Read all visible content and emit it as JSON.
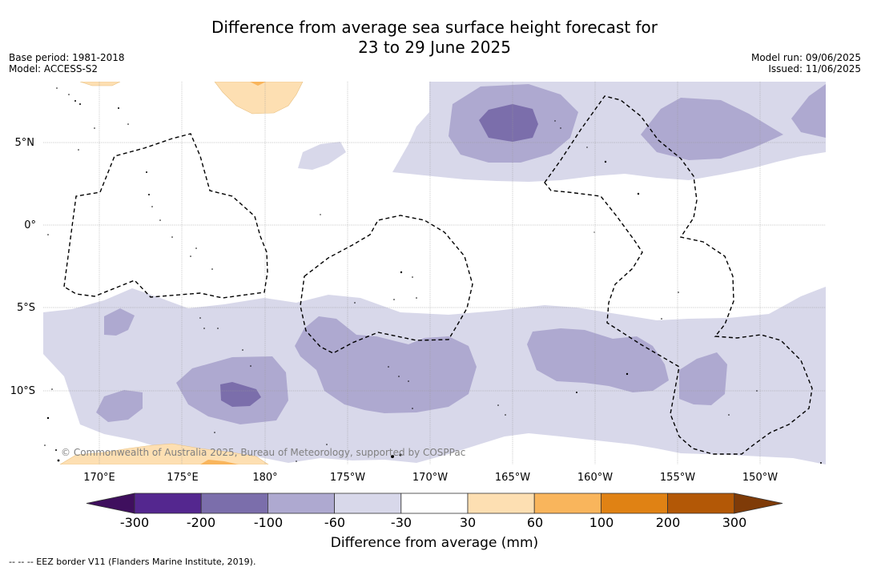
{
  "title": {
    "line1": "Difference from average sea surface height forecast for",
    "line2": "23 to 29 June 2025"
  },
  "meta": {
    "base_period": "Base period: 1981-2018",
    "model": "Model: ACCESS-S2",
    "model_run": "Model run: 09/06/2025",
    "issued": "Issued: 11/06/2025"
  },
  "map": {
    "lat_labels": [
      "5°N",
      "0°",
      "5°S",
      "10°S"
    ],
    "lon_labels": [
      "170°E",
      "175°E",
      "180°",
      "175°W",
      "170°W",
      "165°W",
      "160°W",
      "155°W",
      "150°W"
    ],
    "credit": "© Commonwealth of Australia 2025, Bureau of Meteorology, supported by COSPPac",
    "eez_line_color": "#000000",
    "grid": true
  },
  "colorbar": {
    "title": "Difference from average (mm)",
    "ticks": [
      "-300",
      "-200",
      "-100",
      "-60",
      "-30",
      "30",
      "60",
      "100",
      "200",
      "300"
    ],
    "bins": [
      {
        "range": "< -300",
        "color": "#3f0f5e"
      },
      {
        "range": "-300 to -200",
        "color": "#54278f"
      },
      {
        "range": "-200 to -100",
        "color": "#7b6eab"
      },
      {
        "range": "-100 to -60",
        "color": "#aea9d0"
      },
      {
        "range": "-60 to -30",
        "color": "#d8d8ea"
      },
      {
        "range": "-30 to 30",
        "color": "#ffffff"
      },
      {
        "range": "30 to 60",
        "color": "#fddfb2"
      },
      {
        "range": "60 to 100",
        "color": "#f9b55c"
      },
      {
        "range": "100 to 200",
        "color": "#e08214"
      },
      {
        "range": "200 to 300",
        "color": "#b35806"
      },
      {
        "range": "> 300",
        "color": "#7f3b08"
      }
    ]
  },
  "footer": "--  --  -- EEZ border V11 (Flanders Marine Institute, 2019)."
}
